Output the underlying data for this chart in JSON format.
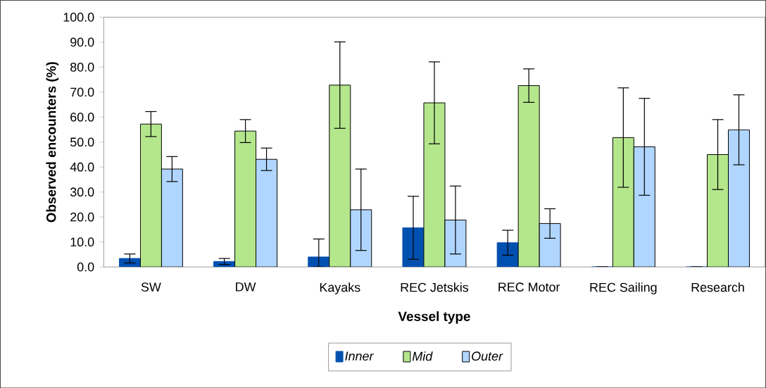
{
  "chart_data": {
    "type": "bar",
    "xlabel": "Vessel type",
    "ylabel": "Observed encounters (%)",
    "categories": [
      "SW",
      "DW",
      "Kayaks",
      "REC Jetskis",
      "REC Motor",
      "REC Sailing",
      "Research"
    ],
    "series": [
      {
        "name": "Inner",
        "color": "#0050b0",
        "values": [
          3.4,
          2.2,
          4.0,
          15.7,
          9.7,
          0,
          0
        ],
        "errors": [
          1.8,
          1.2,
          [
            0,
            11.2
          ],
          12.6,
          5.0,
          null,
          null
        ]
      },
      {
        "name": "Mid",
        "color": "#b4e68c",
        "values": [
          57.2,
          54.4,
          72.8,
          65.7,
          72.6,
          51.8,
          45.0
        ],
        "errors": [
          5.0,
          4.6,
          17.3,
          16.4,
          6.7,
          19.9,
          14.0
        ]
      },
      {
        "name": "Outer",
        "color": "#b0d6ff",
        "values": [
          39.2,
          43.1,
          22.9,
          18.8,
          17.4,
          48.1,
          54.9
        ],
        "errors": [
          5.0,
          4.5,
          16.3,
          13.6,
          5.9,
          19.4,
          14.0
        ]
      }
    ],
    "ylim": [
      0,
      100
    ],
    "yticks": [
      {
        "value": 0,
        "label": "0.0"
      },
      {
        "value": 10,
        "label": "10.0"
      },
      {
        "value": 20,
        "label": "20.0"
      },
      {
        "value": 30,
        "label": "30.0"
      },
      {
        "value": 40,
        "label": "40.0"
      },
      {
        "value": 50,
        "label": "50.0"
      },
      {
        "value": 60,
        "label": "60.0"
      },
      {
        "value": 70,
        "label": "70.0"
      },
      {
        "value": 80,
        "label": "80.0"
      },
      {
        "value": 90,
        "label": "90.0"
      },
      {
        "value": 100,
        "label": "100.0"
      }
    ],
    "legend": "bottom"
  }
}
